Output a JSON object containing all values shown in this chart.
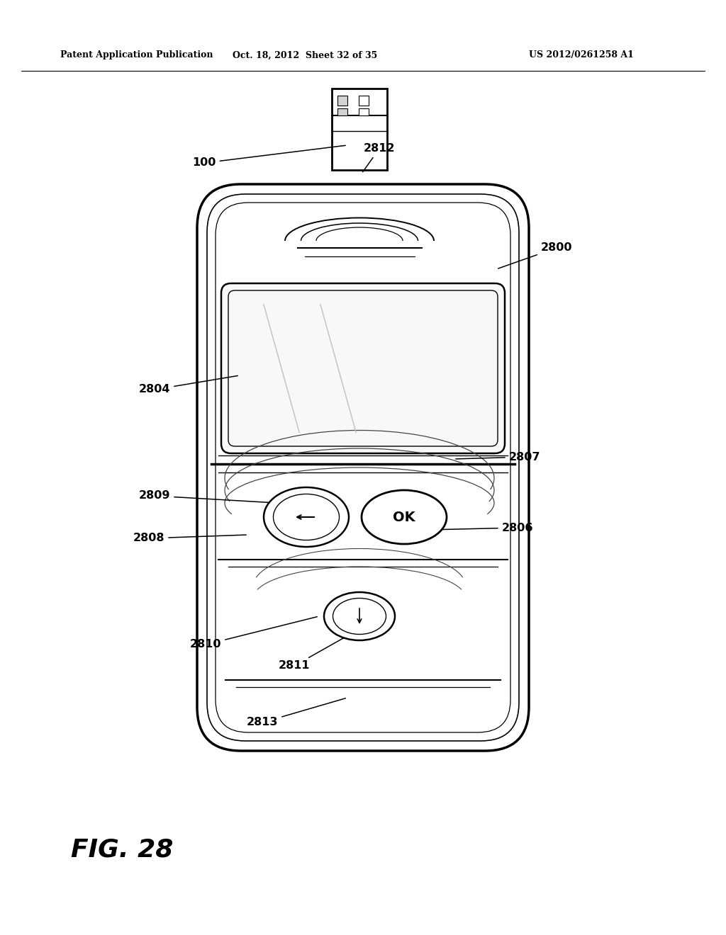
{
  "bg_color": "#ffffff",
  "header_left": "Patent Application Publication",
  "header_mid": "Oct. 18, 2012  Sheet 32 of 35",
  "header_right": "US 2012/0261258 A1",
  "fig_label": "FIG. 28"
}
